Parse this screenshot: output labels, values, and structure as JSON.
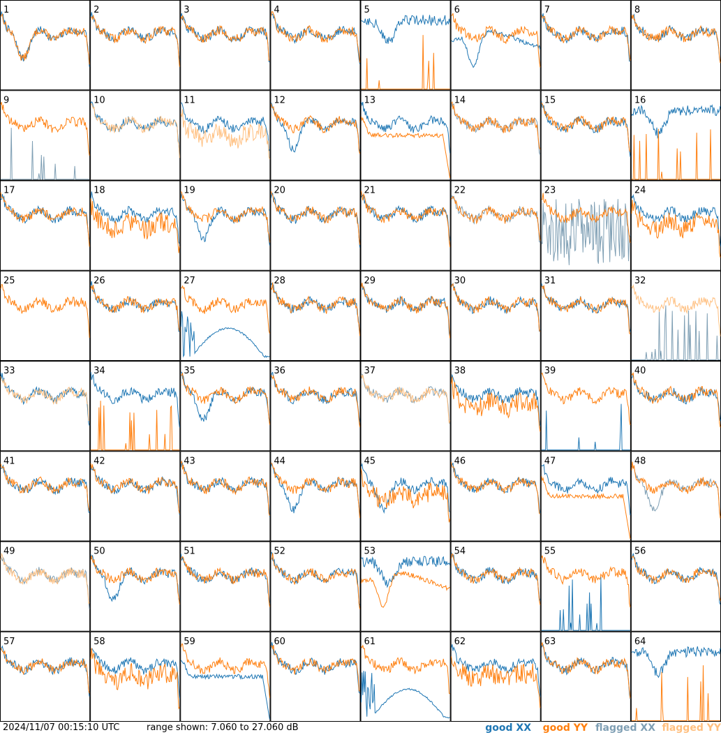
{
  "chart_data": {
    "type": "line",
    "layout": "8x8 grid of small-multiple spectra",
    "panel_labels": [
      "1",
      "2",
      "3",
      "4",
      "5",
      "6",
      "7",
      "8",
      "9",
      "10",
      "11",
      "12",
      "13",
      "14",
      "15",
      "16",
      "17",
      "18",
      "19",
      "20",
      "21",
      "22",
      "23",
      "24",
      "25",
      "26",
      "27",
      "28",
      "29",
      "30",
      "31",
      "32",
      "33",
      "34",
      "35",
      "36",
      "37",
      "38",
      "39",
      "40",
      "41",
      "42",
      "43",
      "44",
      "45",
      "46",
      "47",
      "48",
      "49",
      "50",
      "51",
      "52",
      "53",
      "54",
      "55",
      "56",
      "57",
      "58",
      "59",
      "60",
      "61",
      "62",
      "63",
      "64"
    ],
    "ylim_db": [
      7.06,
      27.06
    ],
    "grid": false,
    "legend_placement": "bottom-right",
    "series": [
      {
        "name": "good XX",
        "color": "#1f77b4"
      },
      {
        "name": "good YY",
        "color": "#ff7f0e"
      },
      {
        "name": "flagged XX",
        "color": "#7f9fb4"
      },
      {
        "name": "flagged YY",
        "color": "#ffbf7f"
      }
    ],
    "panels": [
      {
        "xx": "hump",
        "yy": "hump",
        "yyFlag": false,
        "xxFlag": false
      },
      {
        "xx": "normal",
        "yy": "normal"
      },
      {
        "xx": "normal",
        "yy": "normal"
      },
      {
        "xx": "normal",
        "yy": "normal"
      },
      {
        "xx": "high",
        "yy": "spikes"
      },
      {
        "xx": "dip",
        "yy": "normal"
      },
      {
        "xx": "normal",
        "yy": "normal"
      },
      {
        "xx": "normal",
        "yy": "normal"
      },
      {
        "xx": "spikes",
        "yy": "normal",
        "xxFlag": true
      },
      {
        "xx": "normal",
        "yy": "normal",
        "xxFlag": false,
        "yyFlag": true
      },
      {
        "xx": "normal",
        "yy": "lowvar",
        "yyFlag": true
      },
      {
        "xx": "hump",
        "yy": "normal"
      },
      {
        "xx": "normal",
        "yy": "drop"
      },
      {
        "xx": "normal",
        "yy": "normal",
        "xxFlag": true
      },
      {
        "xx": "normal",
        "yy": "normal"
      },
      {
        "xx": "high",
        "yy": "spikes"
      },
      {
        "xx": "normal",
        "yy": "normal"
      },
      {
        "xx": "normal",
        "yy": "lowvar"
      },
      {
        "xx": "hump",
        "yy": "normal"
      },
      {
        "xx": "normal",
        "yy": "normal"
      },
      {
        "xx": "normal",
        "yy": "normal"
      },
      {
        "xx": "normal",
        "yy": "normal",
        "xxFlag": true
      },
      {
        "xx": "chaos",
        "yy": "normal",
        "xxFlag": true
      },
      {
        "xx": "normal",
        "yy": "lowvar"
      },
      {
        "xx": "none",
        "yy": "normal"
      },
      {
        "xx": "normal",
        "yy": "normal"
      },
      {
        "xx": "arch",
        "yy": "normal"
      },
      {
        "xx": "normal",
        "yy": "normal"
      },
      {
        "xx": "normal",
        "yy": "normal"
      },
      {
        "xx": "normal",
        "yy": "normal"
      },
      {
        "xx": "normal",
        "yy": "normal"
      },
      {
        "xx": "spikes",
        "yy": "normal",
        "xxFlag": true,
        "yyFlag": true
      },
      {
        "xx": "normal",
        "yy": "normal",
        "xxFlag": false,
        "yyFlag": true
      },
      {
        "xx": "normal",
        "yy": "spikes"
      },
      {
        "xx": "hump",
        "yy": "normal"
      },
      {
        "xx": "normal",
        "yy": "normal"
      },
      {
        "xx": "normal",
        "yy": "normal",
        "xxFlag": true,
        "yyFlag": true
      },
      {
        "xx": "normal",
        "yy": "lowvar"
      },
      {
        "xx": "spikes",
        "yy": "normal"
      },
      {
        "xx": "normal",
        "yy": "normal"
      },
      {
        "xx": "normal",
        "yy": "normal"
      },
      {
        "xx": "normal",
        "yy": "normal"
      },
      {
        "xx": "normal",
        "yy": "normal"
      },
      {
        "xx": "hump",
        "yy": "normal"
      },
      {
        "xx": "hump",
        "yy": "lowvar"
      },
      {
        "xx": "normal",
        "yy": "normal"
      },
      {
        "xx": "normal",
        "yy": "drop"
      },
      {
        "xx": "hump",
        "yy": "normal",
        "xxFlag": true
      },
      {
        "xx": "normal",
        "yy": "normal",
        "xxFlag": true,
        "yyFlag": true
      },
      {
        "xx": "hump",
        "yy": "normal"
      },
      {
        "xx": "normal",
        "yy": "normal"
      },
      {
        "xx": "normal",
        "yy": "normal"
      },
      {
        "xx": "high",
        "yy": "dip"
      },
      {
        "xx": "normal",
        "yy": "normal"
      },
      {
        "xx": "spikes",
        "yy": "normal"
      },
      {
        "xx": "normal",
        "yy": "normal"
      },
      {
        "xx": "normal",
        "yy": "normal"
      },
      {
        "xx": "normal",
        "yy": "lowvar"
      },
      {
        "xx": "drop",
        "yy": "normal"
      },
      {
        "xx": "normal",
        "yy": "normal"
      },
      {
        "xx": "arch",
        "yy": "normal"
      },
      {
        "xx": "normal",
        "yy": "lowvar"
      },
      {
        "xx": "normal",
        "yy": "normal"
      },
      {
        "xx": "high",
        "yy": "spikes"
      }
    ]
  },
  "footer": {
    "timestamp": "2024/11/07 00:15:10 UTC",
    "range_text": "range shown: 7.060 to 27.060 dB",
    "legend": [
      "good XX",
      "good YY",
      "flagged XX",
      "flagged YY"
    ]
  }
}
